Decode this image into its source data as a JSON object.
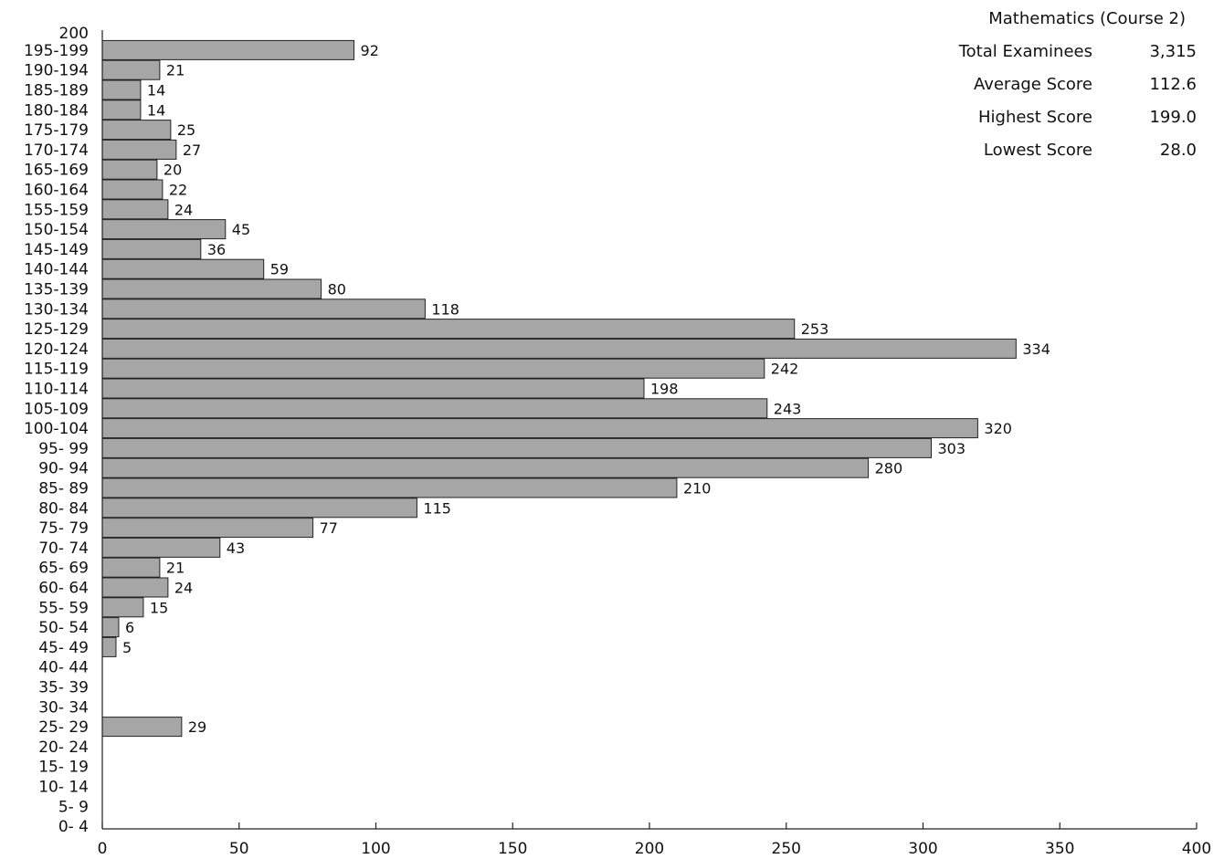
{
  "stats": {
    "title": "Mathematics (Course 2)",
    "rows": [
      {
        "label": "Total Examinees",
        "value": "3,315"
      },
      {
        "label": "Average Score",
        "value": "112.6"
      },
      {
        "label": "Highest Score",
        "value": "199.0"
      },
      {
        "label": "Lowest Score",
        "value": "28.0"
      }
    ]
  },
  "chart_data": {
    "type": "bar",
    "orientation": "horizontal",
    "title": "Mathematics (Course 2)",
    "top_label": "200",
    "categories": [
      "195-199",
      "190-194",
      "185-189",
      "180-184",
      "175-179",
      "170-174",
      "165-169",
      "160-164",
      "155-159",
      "150-154",
      "145-149",
      "140-144",
      "135-139",
      "130-134",
      "125-129",
      "120-124",
      "115-119",
      "110-114",
      "105-109",
      "100-104",
      "95- 99",
      "90- 94",
      "85- 89",
      "80- 84",
      "75- 79",
      "70- 74",
      "65- 69",
      "60- 64",
      "55- 59",
      "50- 54",
      "45- 49",
      "40- 44",
      "35- 39",
      "30- 34",
      "25- 29",
      "20- 24",
      "15- 19",
      "10- 14",
      "5- 9",
      "0- 4"
    ],
    "values": [
      92,
      21,
      14,
      14,
      25,
      27,
      20,
      22,
      24,
      45,
      36,
      59,
      80,
      118,
      253,
      334,
      242,
      198,
      243,
      320,
      303,
      280,
      210,
      115,
      77,
      43,
      21,
      24,
      15,
      6,
      5,
      null,
      null,
      null,
      29,
      null,
      null,
      null,
      null,
      null
    ],
    "value_labels": [
      "92",
      "21",
      "14",
      "14",
      "25",
      "27",
      "20",
      "22",
      "24",
      "45",
      "36",
      "59",
      "80",
      "118",
      "253",
      "334",
      "242",
      "198",
      "243",
      "320",
      "303",
      "280",
      "210",
      "115",
      "77",
      "43",
      "21",
      "24",
      "15",
      "6",
      "5",
      "",
      "",
      "",
      "29",
      "",
      "",
      "",
      "",
      ""
    ],
    "xlim": [
      0,
      400
    ],
    "xticks": [
      0,
      50,
      100,
      150,
      200,
      250,
      300,
      350,
      400
    ],
    "grid": false,
    "legend": "none",
    "bar_color": "#a6a6a6"
  }
}
